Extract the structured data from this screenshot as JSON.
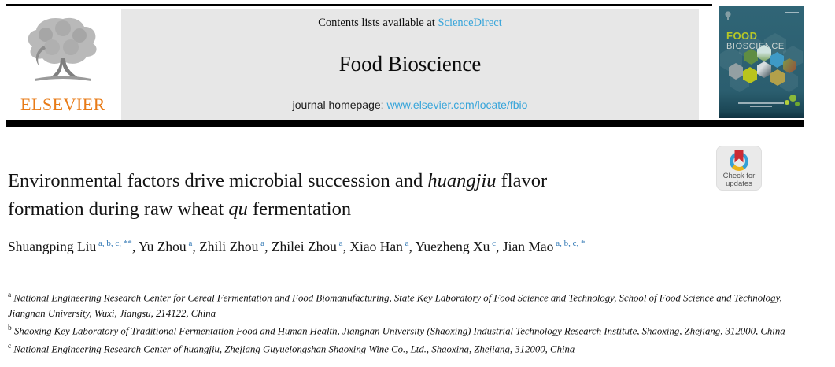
{
  "header": {
    "contents": {
      "prefix": "Contents lists available at ",
      "link": "ScienceDirect"
    },
    "journal_title": "Food Bioscience",
    "homepage": {
      "prefix": "journal homepage: ",
      "link": "www.elsevier.com/locate/fbio"
    }
  },
  "publisher": {
    "wordmark": "ELSEVIER"
  },
  "cover": {
    "line1": "FOOD",
    "line2": "BIOSCIENCE"
  },
  "crossmark": {
    "line1": "Check for",
    "line2": "updates"
  },
  "article": {
    "title_segments": [
      {
        "text": "Environmental factors drive microbial succession and "
      },
      {
        "text": "huangjiu",
        "italic": true
      },
      {
        "text": " flavor"
      },
      {
        "br": true
      },
      {
        "text": "formation during raw wheat "
      },
      {
        "text": "qu",
        "italic": true
      },
      {
        "text": " fermentation"
      }
    ],
    "authors": [
      {
        "name": "Shuangping Liu",
        "sup": "a, b, c, **",
        "sep": ", "
      },
      {
        "name": "Yu Zhou",
        "sup": "a",
        "sep": ", "
      },
      {
        "name": "Zhili Zhou",
        "sup": "a",
        "sep": ", "
      },
      {
        "name": "Zhilei Zhou",
        "sup": "a",
        "sep": ", "
      },
      {
        "name": "Xiao Han",
        "sup": "a",
        "sep": ", "
      },
      {
        "name": "Yuezheng Xu",
        "sup": "c",
        "sep": ", "
      },
      {
        "name": "Jian Mao",
        "sup": "a, b, c, *",
        "sep": ""
      }
    ],
    "affiliations": [
      {
        "sup": "a",
        "text": "National Engineering Research Center for Cereal Fermentation and Food Biomanufacturing, State Key Laboratory of Food Science and Technology, School of Food Science and Technology, Jiangnan University, Wuxi, Jiangsu, 214122, China"
      },
      {
        "sup": "b",
        "text": "Shaoxing Key Laboratory of Traditional Fermentation Food and Human Health, Jiangnan University (Shaoxing) Industrial Technology Research Institute, Shaoxing, Zhejiang, 312000, China"
      },
      {
        "sup": "c",
        "text": "National Engineering Research Center of huangjiu, Zhejiang Guyuelongshan Shaoxing Wine Co., Ltd., Shaoxing, Zhejiang, 312000, China"
      }
    ]
  },
  "colors": {
    "link_blue": "#38a5da",
    "superscript_blue": "#3077b4",
    "elsevier_orange": "#e87b17",
    "band_gray": "#e7e7e7",
    "cover_teal": "#2b5e6f",
    "cover_title_green": "#b6c626",
    "crossmark_red": "#cc2b35",
    "crossmark_blue": "#35a0d6",
    "crossmark_yellow": "#e9b41e"
  }
}
